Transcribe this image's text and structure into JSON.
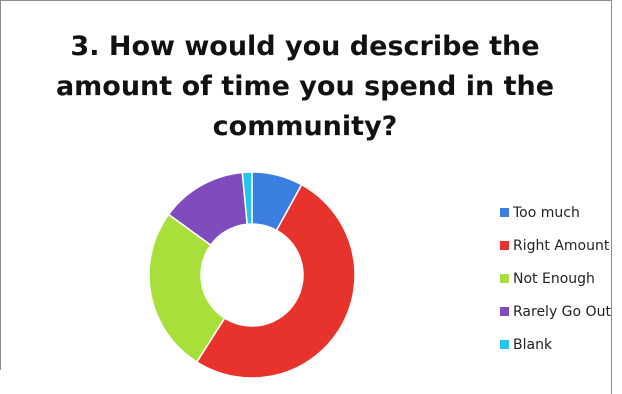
{
  "chart_data": {
    "type": "pie",
    "variant": "donut",
    "title": "3. How would you describe the\namount of time you spend in the\ncommunity?",
    "series": [
      {
        "label": "Too much",
        "value": 8,
        "color": "#3a7ee0"
      },
      {
        "label": "Right Amount",
        "value": 51,
        "color": "#e8322c"
      },
      {
        "label": "Not Enough",
        "value": 26,
        "color": "#a9df3a"
      },
      {
        "label": "Rarely Go Out",
        "value": 13.5,
        "color": "#7f4cbd"
      },
      {
        "label": "Blank",
        "value": 1.5,
        "color": "#26c4ee"
      }
    ],
    "legend_placement": "right"
  }
}
